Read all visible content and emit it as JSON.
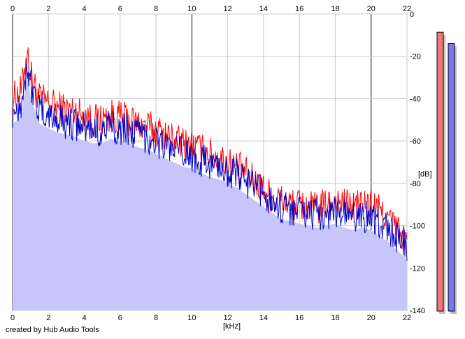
{
  "app": {
    "credit": "created by Hub Audio Tools"
  },
  "chart_data": {
    "type": "area",
    "xlabel": "[kHz]",
    "ylabel": "[dB]",
    "xlim": [
      0,
      22
    ],
    "ylim": [
      -140,
      0
    ],
    "x_ticks": [
      "0",
      "2",
      "4",
      "6",
      "8",
      "10",
      "12",
      "14",
      "16",
      "18",
      "20",
      "22"
    ],
    "y_ticks": [
      "0",
      "-20",
      "-40",
      "-60",
      "-80",
      "-100",
      "-120",
      "-140"
    ],
    "grid": true,
    "fill_color": "#c6c6fa",
    "series": [
      {
        "color": "#ff0000",
        "x": [
          0,
          0.5,
          0.8,
          1,
          1.5,
          2,
          2.5,
          3,
          3.5,
          4,
          4.5,
          5,
          5.5,
          6,
          6.5,
          7,
          7.5,
          8,
          8.5,
          9,
          9.5,
          10,
          10.5,
          11,
          11.5,
          12,
          12.5,
          13,
          13.5,
          14,
          14.5,
          15,
          15.5,
          16,
          16.5,
          17,
          17.5,
          18,
          18.5,
          19,
          19.5,
          20,
          20.5,
          21,
          21.5,
          22
        ],
        "values": [
          -40,
          -36,
          -17,
          -28,
          -40,
          -42,
          -44,
          -45,
          -46,
          -48,
          -50,
          -50,
          -48,
          -49,
          -50,
          -52,
          -53,
          -55,
          -57,
          -59,
          -61,
          -62,
          -64,
          -66,
          -68,
          -70,
          -72,
          -75,
          -79,
          -83,
          -86,
          -88,
          -90,
          -90,
          -91,
          -92,
          -90,
          -88,
          -90,
          -91,
          -90,
          -90,
          -93,
          -97,
          -102,
          -107
        ]
      },
      {
        "color": "#0000c8",
        "x": [
          0,
          0.5,
          0.8,
          1,
          1.5,
          2,
          2.5,
          3,
          3.5,
          4,
          4.5,
          5,
          5.5,
          6,
          6.5,
          7,
          7.5,
          8,
          8.5,
          9,
          9.5,
          10,
          10.5,
          11,
          11.5,
          12,
          12.5,
          13,
          13.5,
          14,
          14.5,
          15,
          15.5,
          16,
          16.5,
          17,
          17.5,
          18,
          18.5,
          19,
          19.5,
          20,
          20.5,
          21,
          21.5,
          22
        ],
        "values": [
          -46,
          -42,
          -23,
          -33,
          -46,
          -48,
          -50,
          -51,
          -52,
          -54,
          -55,
          -55,
          -53,
          -54,
          -55,
          -57,
          -58,
          -60,
          -62,
          -64,
          -66,
          -67,
          -69,
          -71,
          -72,
          -74,
          -76,
          -79,
          -82,
          -85,
          -88,
          -91,
          -92,
          -93,
          -94,
          -95,
          -94,
          -93,
          -95,
          -96,
          -95,
          -96,
          -99,
          -102,
          -106,
          -110
        ]
      }
    ],
    "meters": [
      {
        "level": 0.98,
        "color": "#f07878"
      },
      {
        "level": 0.94,
        "color": "#7878f0"
      }
    ]
  }
}
